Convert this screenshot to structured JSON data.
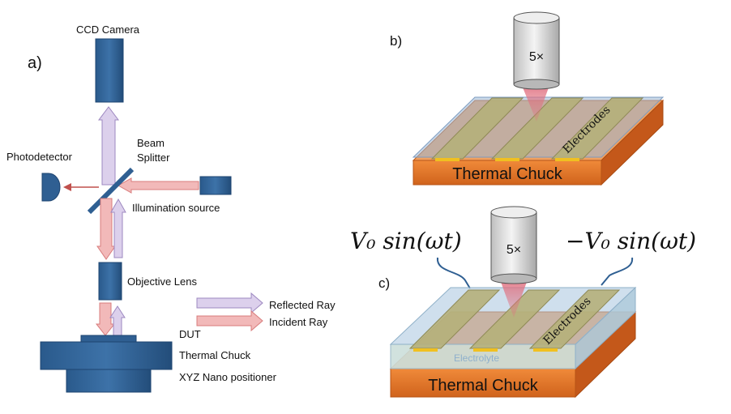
{
  "panel_a": {
    "label": "a)",
    "ccd_camera": "CCD Camera",
    "beam_splitter_line1": "Beam",
    "beam_splitter_line2": "Splitter",
    "photodetector": "Photodetector",
    "illumination_source": "Illumination source",
    "objective_lens": "Objective Lens",
    "reflected_ray": "Reflected Ray",
    "incident_ray": "Incident Ray",
    "dut": "DUT",
    "thermal_chuck": "Thermal Chuck",
    "xyz_positioner": "XYZ Nano positioner"
  },
  "panel_b": {
    "label": "b)",
    "lens_mark": "5×",
    "electrodes": "Electrodes",
    "thermal_chuck": "Thermal Chuck"
  },
  "panel_c": {
    "label": "c)",
    "lens_mark": "5×",
    "electrodes": "Electrodes",
    "electrolyte": "Electrolyte",
    "thermal_chuck": "Thermal Chuck",
    "voltage_left": "V₀ sin(ωt)",
    "voltage_right": "−V₀ sin(ωt)"
  },
  "colors": {
    "component_blue": "#2f5f92",
    "reflected_fill": "#dcd0ec",
    "incident_fill": "#f2b9b9",
    "chuck_orange": "#e2762a",
    "electrode_olive": "#b5b07a",
    "glass_blue": "#9db8d6",
    "contact_yellow": "#f0c020"
  }
}
